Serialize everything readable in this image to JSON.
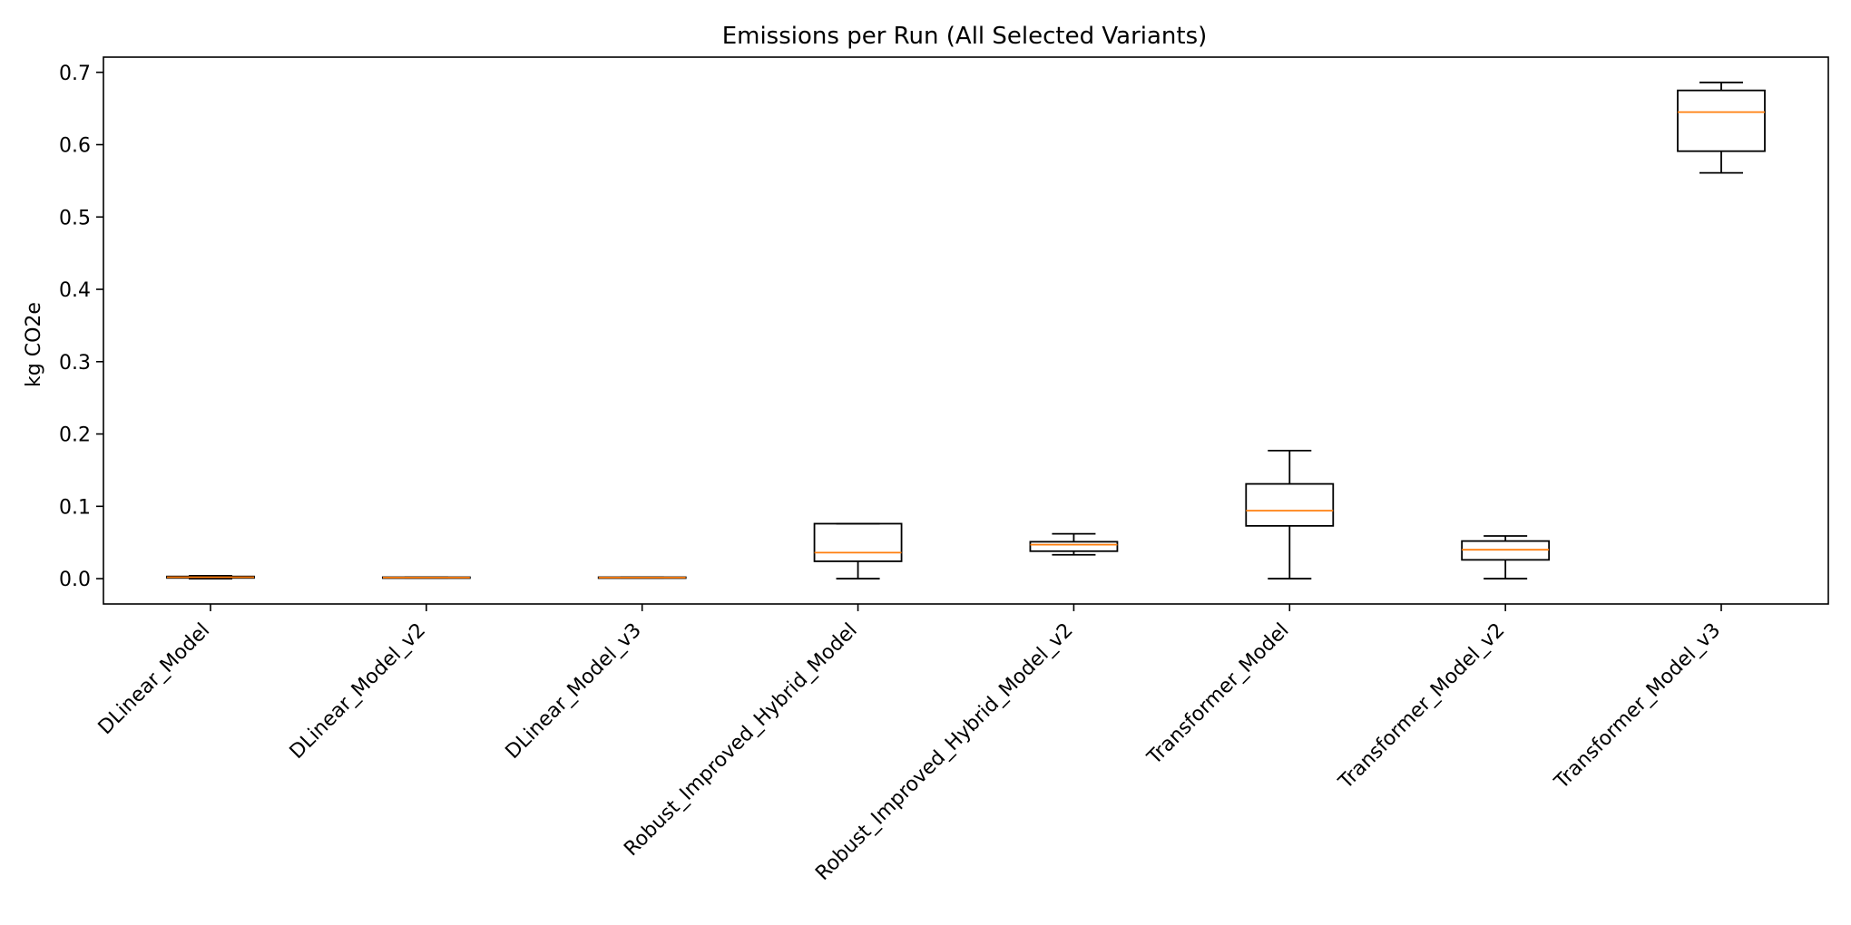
{
  "chart_data": {
    "type": "box",
    "title": "Emissions per Run (All Selected Variants)",
    "xlabel": "",
    "ylabel": "kg CO2e",
    "ylim": [
      -0.035,
      0.721
    ],
    "yticks": [
      0.0,
      0.1,
      0.2,
      0.3,
      0.4,
      0.5,
      0.6,
      0.7
    ],
    "ytick_labels": [
      "0.0",
      "0.1",
      "0.2",
      "0.3",
      "0.4",
      "0.5",
      "0.6",
      "0.7"
    ],
    "grid": false,
    "legend": "none",
    "colors": {
      "box": "#000000",
      "median": "#ff7f0e",
      "axes": "#000000"
    },
    "categories": [
      "DLinear_Model",
      "DLinear_Model_v2",
      "DLinear_Model_v3",
      "Robust_Improved_Hybrid_Model",
      "Robust_Improved_Hybrid_Model_v2",
      "Transformer_Model",
      "Transformer_Model_v2",
      "Transformer_Model_v3"
    ],
    "boxes": [
      {
        "whisker_low": 0.0,
        "q1": 0.001,
        "median": 0.002,
        "q3": 0.003,
        "whisker_high": 0.004
      },
      {
        "whisker_low": 0.001,
        "q1": 0.001,
        "median": 0.0015,
        "q3": 0.002,
        "whisker_high": 0.002
      },
      {
        "whisker_low": 0.001,
        "q1": 0.001,
        "median": 0.0015,
        "q3": 0.002,
        "whisker_high": 0.002
      },
      {
        "whisker_low": 0.0,
        "q1": 0.024,
        "median": 0.036,
        "q3": 0.076,
        "whisker_high": 0.076
      },
      {
        "whisker_low": 0.033,
        "q1": 0.038,
        "median": 0.047,
        "q3": 0.051,
        "whisker_high": 0.062
      },
      {
        "whisker_low": 0.0,
        "q1": 0.073,
        "median": 0.094,
        "q3": 0.131,
        "whisker_high": 0.177
      },
      {
        "whisker_low": 0.0,
        "q1": 0.026,
        "median": 0.04,
        "q3": 0.052,
        "whisker_high": 0.059
      },
      {
        "whisker_low": 0.561,
        "q1": 0.591,
        "median": 0.645,
        "q3": 0.675,
        "whisker_high": 0.686
      }
    ]
  }
}
